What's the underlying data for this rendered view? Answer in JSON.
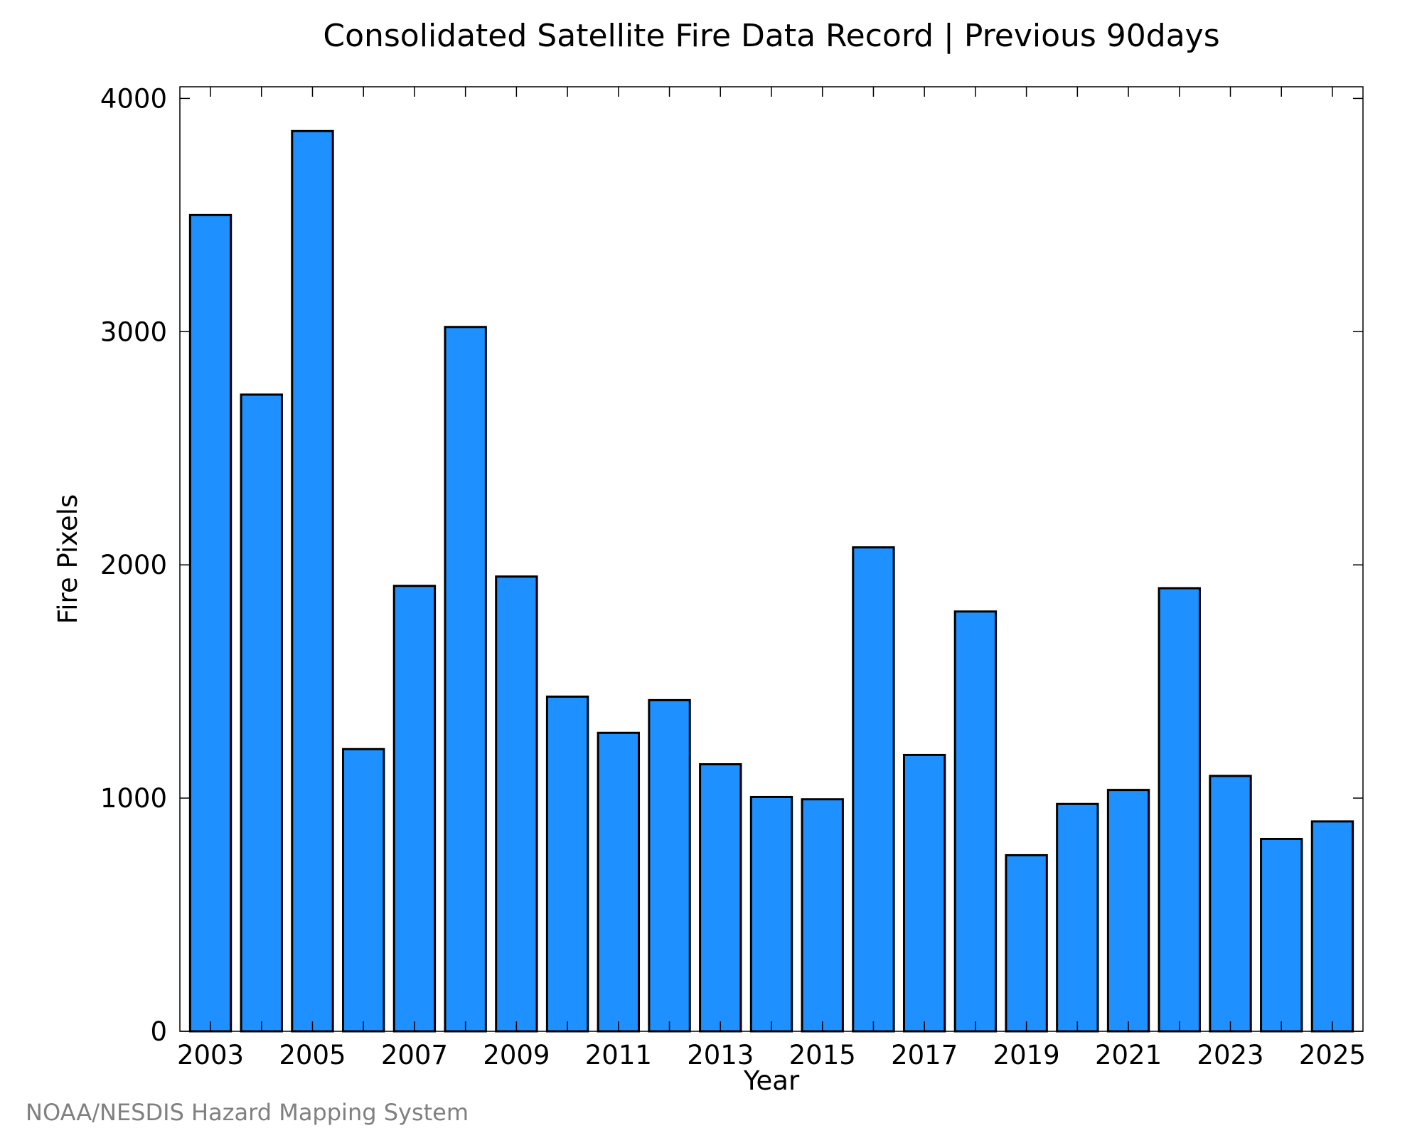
{
  "chart_data": {
    "type": "bar",
    "title": "Consolidated Satellite Fire Data Record | Previous 90days",
    "xlabel": "Year",
    "ylabel": "Fire Pixels",
    "categories": [
      "2003",
      "2004",
      "2005",
      "2006",
      "2007",
      "2008",
      "2009",
      "2010",
      "2011",
      "2012",
      "2013",
      "2014",
      "2015",
      "2016",
      "2017",
      "2018",
      "2019",
      "2020",
      "2021",
      "2022",
      "2023",
      "2024",
      "2025"
    ],
    "x_tick_labels": [
      "2003",
      "2005",
      "2007",
      "2009",
      "2011",
      "2013",
      "2015",
      "2017",
      "2019",
      "2021",
      "2023",
      "2025"
    ],
    "y_tick_labels": [
      "0",
      "1000",
      "2000",
      "3000",
      "4000"
    ],
    "values": [
      3500,
      2730,
      3860,
      1210,
      1910,
      3020,
      1950,
      1435,
      1280,
      1420,
      1145,
      1005,
      995,
      2075,
      1185,
      1800,
      755,
      975,
      1035,
      1900,
      1095,
      825,
      900
    ],
    "ylim": [
      0,
      4050
    ],
    "grid": false,
    "bar_color": "#1e90ff",
    "source": "NOAA/NESDIS Hazard Mapping System"
  }
}
